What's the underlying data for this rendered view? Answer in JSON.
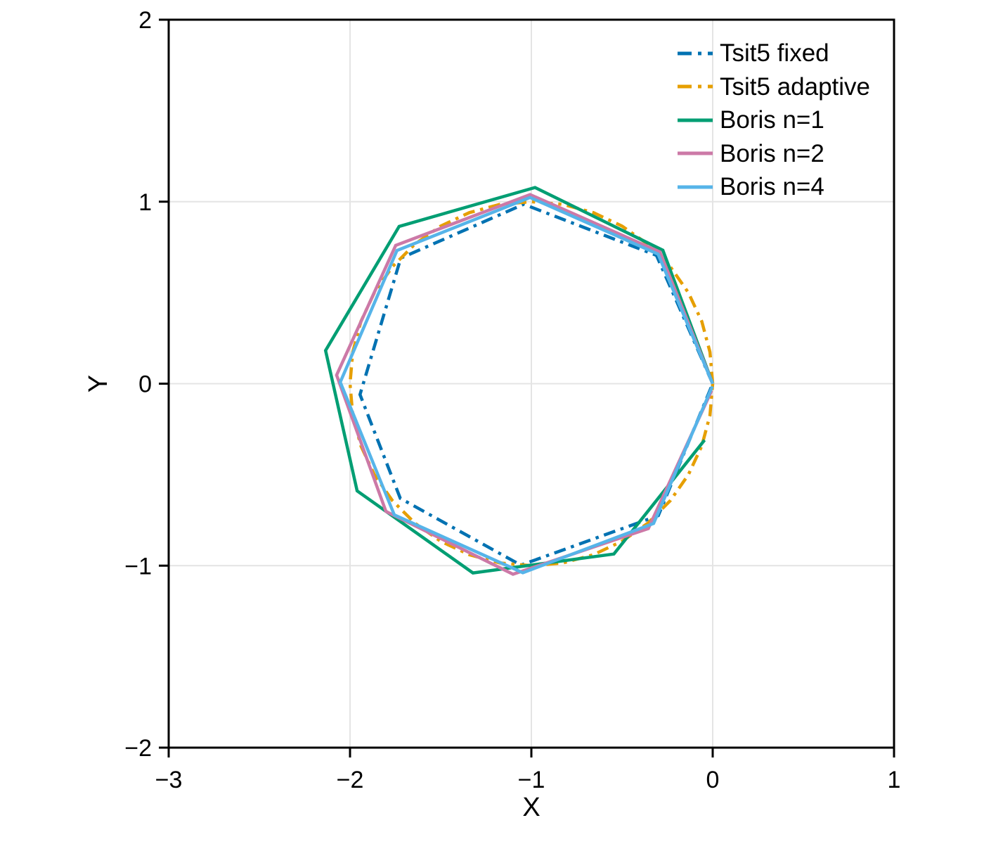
{
  "figure": {
    "background": "#ffffff"
  },
  "chart_data": {
    "type": "line",
    "title": "",
    "xlabel": "X",
    "ylabel": "Y",
    "xlim": [
      -3,
      1
    ],
    "ylim": [
      -2,
      2
    ],
    "xticks": {
      "values": [
        -3,
        -2,
        -1,
        0,
        1
      ],
      "labels": [
        "−3",
        "−2",
        "−1",
        "0",
        "1"
      ]
    },
    "yticks": {
      "values": [
        -2,
        -1,
        0,
        1,
        2
      ],
      "labels": [
        "−2",
        "−1",
        "0",
        "1",
        "2"
      ]
    },
    "grid": {
      "x": [
        -2,
        -1,
        0
      ],
      "y": [
        -1,
        0,
        1
      ],
      "color": "#e4e4e4",
      "on": true
    },
    "legend_position": "top-right",
    "axis_color": "#000000",
    "series": [
      {
        "name": "Tsit5 fixed",
        "color": "#0072B2",
        "style": "dashdot",
        "points": [
          [
            0.0,
            0.0
          ],
          [
            -0.31,
            0.705
          ],
          [
            -1.042,
            0.986
          ],
          [
            -1.72,
            0.69
          ],
          [
            -1.945,
            -0.06
          ],
          [
            -1.723,
            -0.63
          ],
          [
            -1.058,
            -0.997
          ],
          [
            -0.3,
            -0.725
          ],
          [
            -0.005,
            -0.012
          ]
        ]
      },
      {
        "name": "Tsit5 adaptive",
        "color": "#E69F00",
        "style": "dashdot",
        "points": [
          [
            0.0,
            0.0
          ],
          [
            -0.015,
            0.174
          ],
          [
            -0.06,
            0.342
          ],
          [
            -0.134,
            0.5
          ],
          [
            -0.234,
            0.643
          ],
          [
            -0.357,
            0.766
          ],
          [
            -0.5,
            0.866
          ],
          [
            -0.658,
            0.94
          ],
          [
            -0.826,
            0.985
          ],
          [
            -1.0,
            1.0
          ],
          [
            -1.174,
            0.985
          ],
          [
            -1.342,
            0.94
          ],
          [
            -1.5,
            0.866
          ],
          [
            -1.643,
            0.766
          ],
          [
            -1.766,
            0.643
          ],
          [
            -1.866,
            0.5
          ],
          [
            -1.94,
            0.342
          ],
          [
            -1.985,
            0.174
          ],
          [
            -2.0,
            0.0
          ],
          [
            -1.985,
            -0.174
          ],
          [
            -1.94,
            -0.342
          ],
          [
            -1.866,
            -0.5
          ],
          [
            -1.766,
            -0.643
          ],
          [
            -1.643,
            -0.766
          ],
          [
            -1.5,
            -0.866
          ],
          [
            -1.342,
            -0.94
          ],
          [
            -1.174,
            -0.985
          ],
          [
            -1.0,
            -1.0
          ],
          [
            -0.826,
            -0.985
          ],
          [
            -0.658,
            -0.94
          ],
          [
            -0.5,
            -0.866
          ],
          [
            -0.357,
            -0.766
          ],
          [
            -0.234,
            -0.643
          ],
          [
            -0.134,
            -0.5
          ],
          [
            -0.06,
            -0.342
          ],
          [
            -0.015,
            -0.174
          ],
          [
            0.0,
            0.0
          ]
        ]
      },
      {
        "name": "Boris n=1",
        "color": "#009E73",
        "style": "solid",
        "points": [
          [
            0.0,
            0.0
          ],
          [
            -0.275,
            0.733
          ],
          [
            -0.98,
            1.078
          ],
          [
            -1.729,
            0.864
          ],
          [
            -2.135,
            0.182
          ],
          [
            -1.961,
            -0.589
          ],
          [
            -1.322,
            -1.04
          ],
          [
            -0.545,
            -0.936
          ],
          [
            -0.045,
            -0.31
          ]
        ]
      },
      {
        "name": "Boris n=2",
        "color": "#CC79A7",
        "style": "solid",
        "points": [
          [
            0.0,
            0.0
          ],
          [
            -0.291,
            0.724
          ],
          [
            -1.007,
            1.039
          ],
          [
            -1.748,
            0.76
          ],
          [
            -2.074,
            0.047
          ],
          [
            -1.802,
            -0.702
          ],
          [
            -1.101,
            -1.047
          ],
          [
            -0.355,
            -0.796
          ],
          [
            -0.006,
            -0.038
          ]
        ]
      },
      {
        "name": "Boris n=4",
        "color": "#56B4E9",
        "style": "solid",
        "points": [
          [
            0.0,
            0.0
          ],
          [
            -0.301,
            0.712
          ],
          [
            -1.007,
            1.023
          ],
          [
            -1.741,
            0.732
          ],
          [
            -2.054,
            0.008
          ],
          [
            -1.756,
            -0.721
          ],
          [
            -1.047,
            -1.039
          ],
          [
            -0.326,
            -0.768
          ],
          [
            -0.002,
            -0.015
          ]
        ]
      }
    ]
  }
}
